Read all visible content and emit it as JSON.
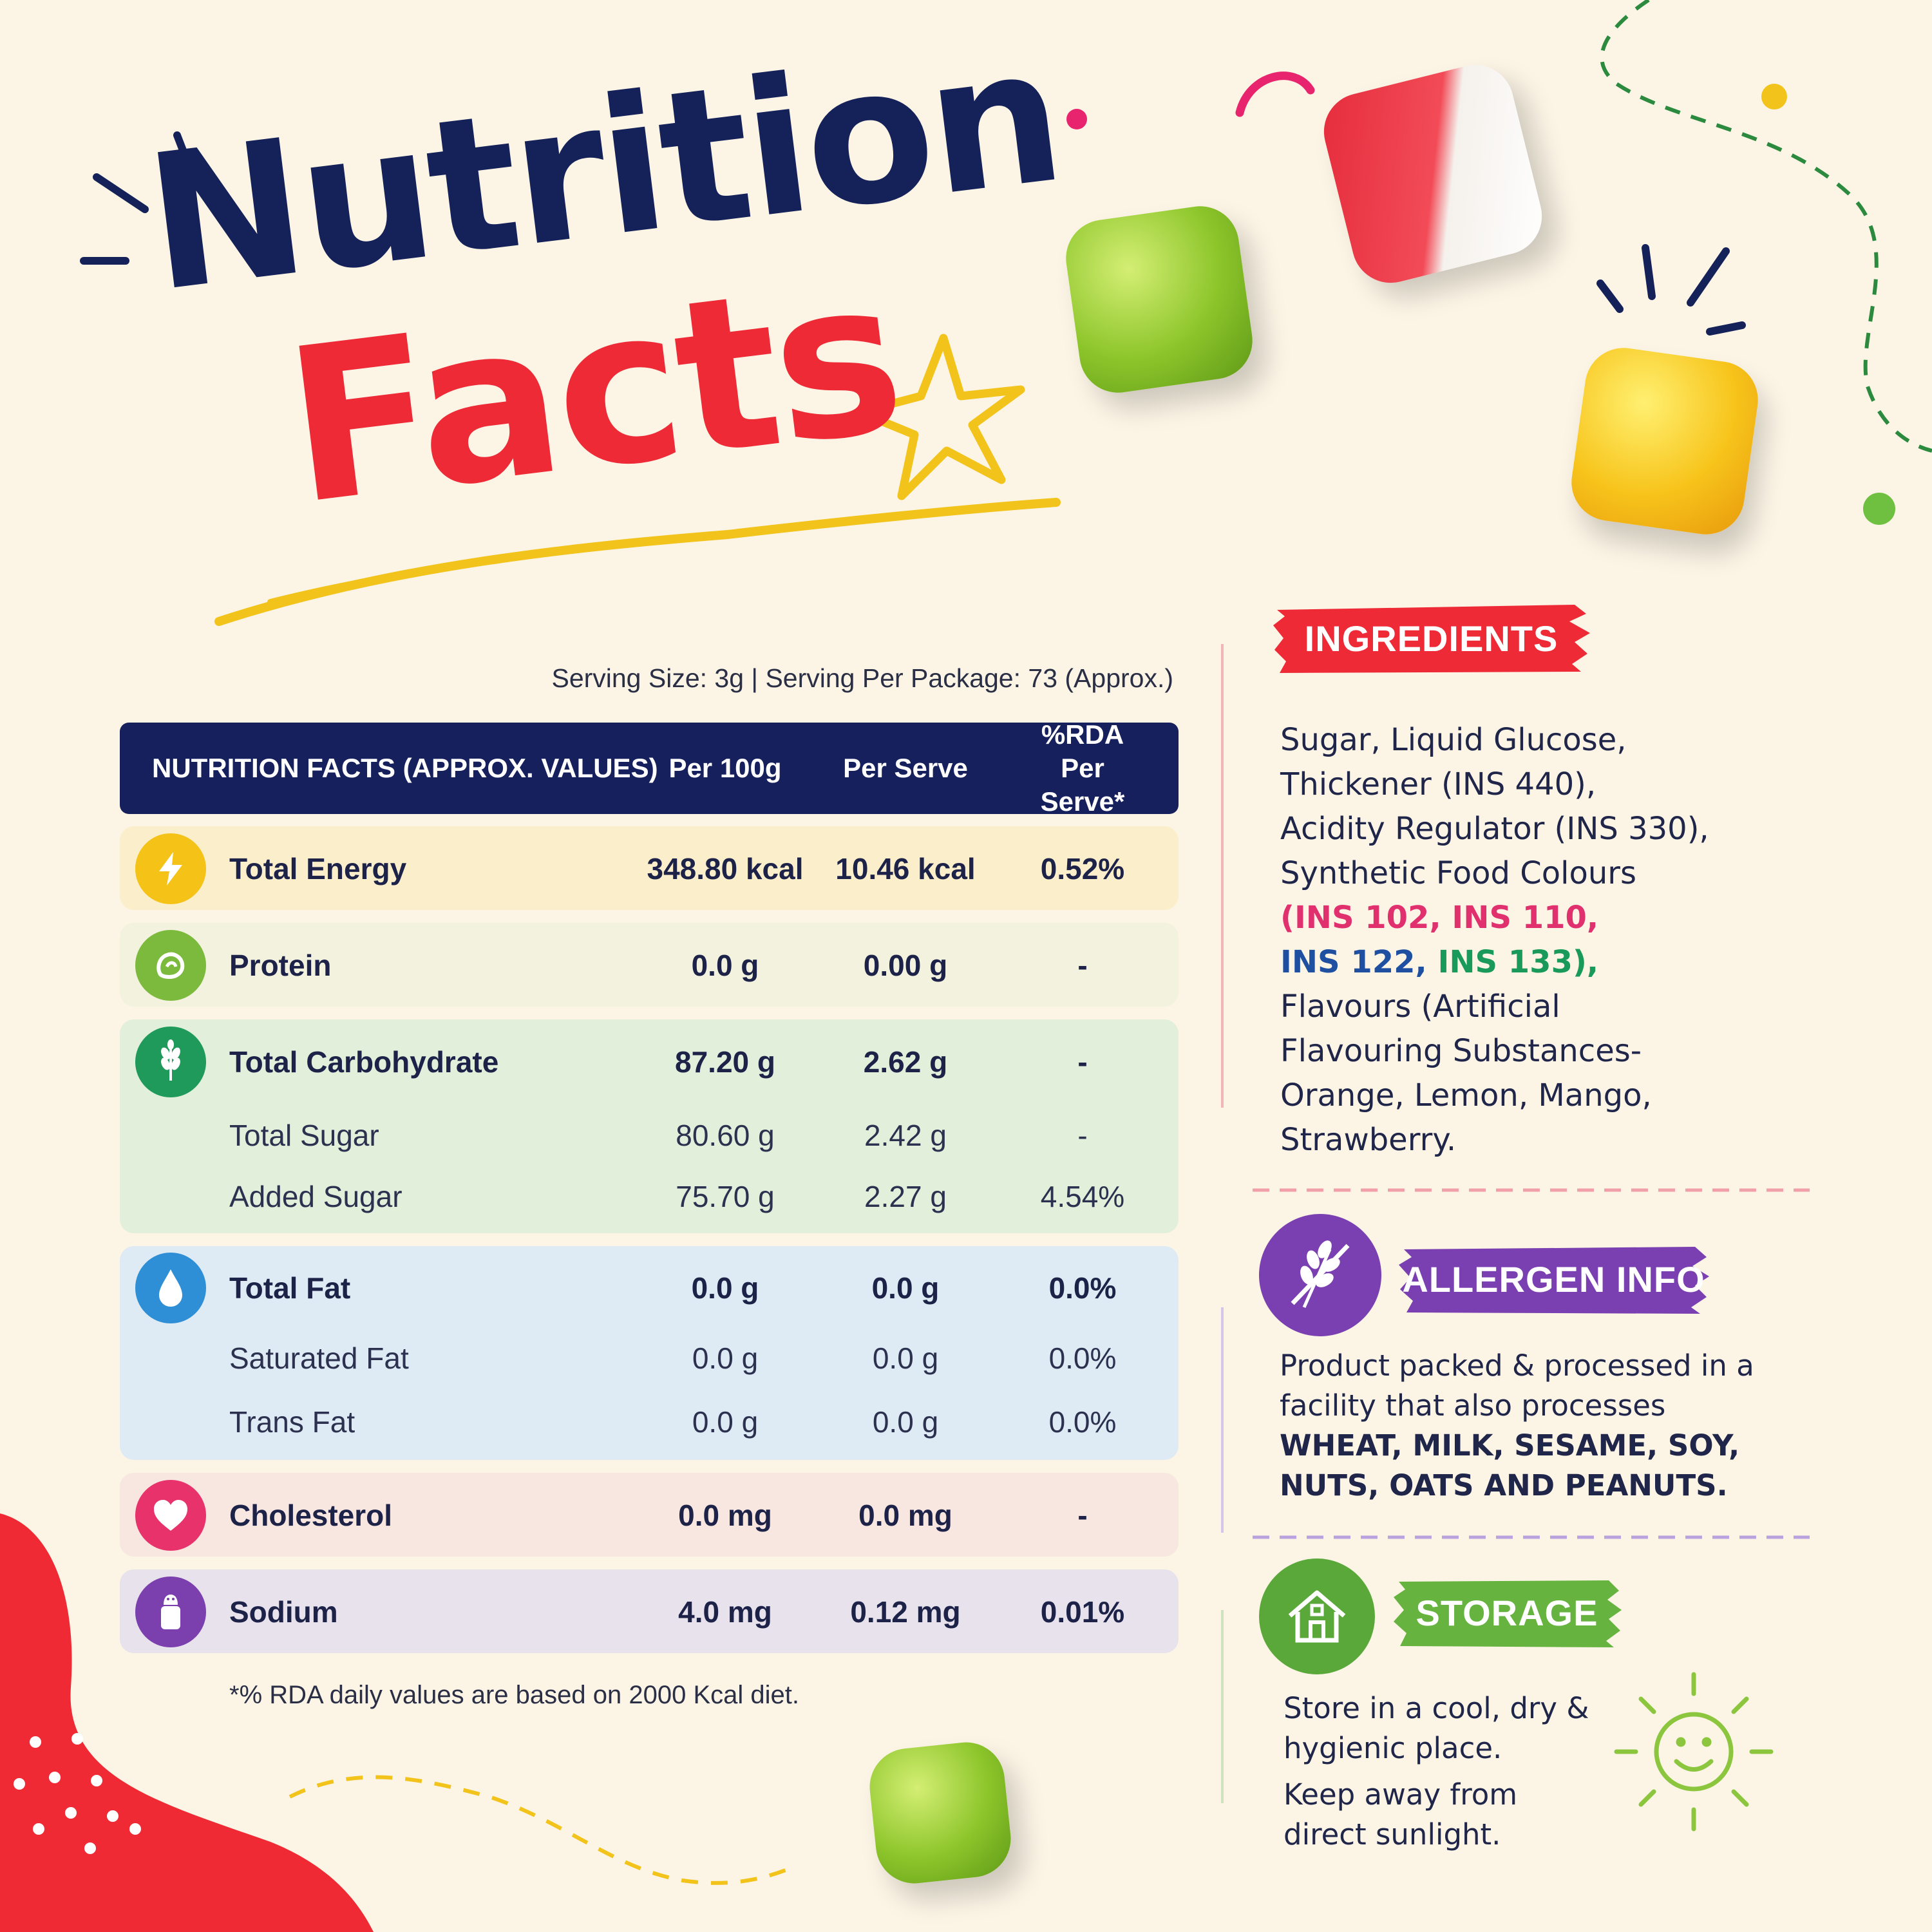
{
  "title": {
    "line1": "Nutrition",
    "line2": "Facts"
  },
  "serving": "Serving Size: 3g | Serving Per Package: 73 (Approx.)",
  "table": {
    "headers": {
      "nutrient": "NUTRITION FACTS (APPROX. VALUES)",
      "per100": "Per 100g",
      "perServe": "Per Serve",
      "rda_line1": "%RDA",
      "rda_line2": "Per Serve*"
    },
    "rows": [
      {
        "label": "Total Energy",
        "per100": "348.80 kcal",
        "perServe": "10.46 kcal",
        "rda": "0.52%",
        "icon": "lightning-icon"
      },
      {
        "label": "Protein",
        "per100": "0.0 g",
        "perServe": "0.00 g",
        "rda": "-",
        "icon": "protein-icon"
      },
      {
        "label": "Total Carbohydrate",
        "per100": "87.20 g",
        "perServe": "2.62 g",
        "rda": "-",
        "icon": "wheat-icon"
      },
      {
        "label": "Total Sugar",
        "per100": "80.60 g",
        "perServe": "2.42 g",
        "rda": "-"
      },
      {
        "label": "Added Sugar",
        "per100": "75.70 g",
        "perServe": "2.27 g",
        "rda": "4.54%"
      },
      {
        "label": "Total Fat",
        "per100": "0.0 g",
        "perServe": "0.0 g",
        "rda": "0.0%",
        "icon": "droplet-icon"
      },
      {
        "label": "Saturated Fat",
        "per100": "0.0 g",
        "perServe": "0.0 g",
        "rda": "0.0%"
      },
      {
        "label": "Trans Fat",
        "per100": "0.0 g",
        "perServe": "0.0 g",
        "rda": "0.0%"
      },
      {
        "label": "Cholesterol",
        "per100": "0.0 mg",
        "perServe": "0.0 mg",
        "rda": "-",
        "icon": "heart-icon"
      },
      {
        "label": "Sodium",
        "per100": "4.0 mg",
        "perServe": "0.12 mg",
        "rda": "0.01%",
        "icon": "salt-shaker-icon"
      }
    ],
    "footnote": "*% RDA daily values are based on 2000 Kcal diet."
  },
  "ingredients": {
    "heading": "INGREDIENTS",
    "l1": "Sugar, Liquid Glucose,",
    "l2": "Thickener (INS 440),",
    "l3": "Acidity Regulator (INS 330),",
    "l4": "Synthetic Food Colours",
    "c_open": "(",
    "c1": "INS 102,",
    "c2": "INS 110,",
    "c3": "INS 122,",
    "c4": "INS 133",
    "c_close": "),",
    "l7": "Flavours (Artificial",
    "l8": "Flavouring Substances-",
    "l9": "Orange, Lemon, Mango,",
    "l10": "Strawberry.",
    "colour_codes": {
      "ins102": "#e0306e",
      "ins110": "#e0306e",
      "ins122": "#1f4fa0",
      "ins133": "#1a9a5a"
    }
  },
  "allergen": {
    "heading": "ALLERGEN INFO",
    "l1": "Product packed & processed in a",
    "l2": "facility that also processes",
    "l3": "WHEAT, MILK, SESAME, SOY,",
    "l4": "NUTS, OATS AND PEANUTS.",
    "icon": "wheat-crossed-icon"
  },
  "storage": {
    "heading": "STORAGE",
    "l1": "Store in a cool, dry &",
    "l2": "hygienic place.",
    "l3": "Keep away from",
    "l4": "direct sunlight.",
    "icon": "house-icon"
  },
  "colors": {
    "navy": "#16205c",
    "red": "#ee2a37",
    "yellow": "#f2c31a",
    "purple": "#7a3fb0",
    "green": "#5aa83a",
    "background": "#fcf5e6"
  }
}
